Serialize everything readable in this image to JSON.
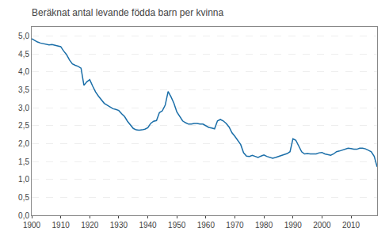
{
  "chart_data": {
    "type": "line",
    "title": "Beräknat antal levande födda barn per kvinna",
    "color": "#1a6ea8",
    "x": [
      1900,
      1901,
      1902,
      1903,
      1904,
      1905,
      1906,
      1907,
      1908,
      1909,
      1910,
      1911,
      1912,
      1913,
      1914,
      1915,
      1916,
      1917,
      1918,
      1919,
      1920,
      1921,
      1922,
      1923,
      1924,
      1925,
      1926,
      1927,
      1928,
      1929,
      1930,
      1931,
      1932,
      1933,
      1934,
      1935,
      1936,
      1937,
      1938,
      1939,
      1940,
      1941,
      1942,
      1943,
      1944,
      1945,
      1946,
      1947,
      1948,
      1949,
      1950,
      1951,
      1952,
      1953,
      1954,
      1955,
      1956,
      1957,
      1958,
      1959,
      1960,
      1961,
      1962,
      1963,
      1964,
      1965,
      1966,
      1967,
      1968,
      1969,
      1970,
      1971,
      1972,
      1973,
      1974,
      1975,
      1976,
      1977,
      1978,
      1979,
      1980,
      1981,
      1982,
      1983,
      1984,
      1985,
      1986,
      1987,
      1988,
      1989,
      1990,
      1991,
      1992,
      1993,
      1994,
      1995,
      1996,
      1997,
      1998,
      1999,
      2000,
      2001,
      2002,
      2003,
      2004,
      2005,
      2006,
      2007,
      2008,
      2009,
      2010,
      2011,
      2012,
      2013,
      2014,
      2015,
      2016,
      2017,
      2018,
      2019
    ],
    "values": [
      4.92,
      4.87,
      4.83,
      4.8,
      4.78,
      4.76,
      4.75,
      4.76,
      4.74,
      4.72,
      4.7,
      4.58,
      4.48,
      4.33,
      4.22,
      4.18,
      4.15,
      4.1,
      3.62,
      3.72,
      3.78,
      3.6,
      3.44,
      3.32,
      3.22,
      3.12,
      3.07,
      3.02,
      2.97,
      2.95,
      2.92,
      2.83,
      2.75,
      2.62,
      2.52,
      2.42,
      2.38,
      2.37,
      2.38,
      2.4,
      2.44,
      2.56,
      2.62,
      2.64,
      2.86,
      2.91,
      3.07,
      3.45,
      3.3,
      3.12,
      2.88,
      2.74,
      2.63,
      2.58,
      2.54,
      2.54,
      2.56,
      2.56,
      2.54,
      2.54,
      2.5,
      2.45,
      2.43,
      2.41,
      2.63,
      2.67,
      2.63,
      2.56,
      2.46,
      2.3,
      2.2,
      2.08,
      1.97,
      1.74,
      1.65,
      1.64,
      1.67,
      1.64,
      1.61,
      1.65,
      1.68,
      1.64,
      1.61,
      1.59,
      1.61,
      1.64,
      1.66,
      1.69,
      1.72,
      1.77,
      2.13,
      2.09,
      1.93,
      1.77,
      1.71,
      1.72,
      1.71,
      1.71,
      1.71,
      1.74,
      1.75,
      1.71,
      1.69,
      1.67,
      1.71,
      1.77,
      1.79,
      1.82,
      1.84,
      1.87,
      1.86,
      1.84,
      1.84,
      1.87,
      1.87,
      1.85,
      1.81,
      1.77,
      1.64,
      1.35
    ],
    "xlim": [
      1900,
      2019
    ],
    "ylim": [
      0.0,
      5.25
    ],
    "xticks": [
      1900,
      1910,
      1920,
      1930,
      1940,
      1950,
      1960,
      1970,
      1980,
      1990,
      2000,
      2010
    ],
    "yticks": [
      {
        "value": 0.0,
        "label": "0,0"
      },
      {
        "value": 0.5,
        "label": "0,5"
      },
      {
        "value": 1.0,
        "label": "1,0"
      },
      {
        "value": 1.5,
        "label": "1,5"
      },
      {
        "value": 2.0,
        "label": "2,0"
      },
      {
        "value": 2.5,
        "label": "2,5"
      },
      {
        "value": 3.0,
        "label": "3,0"
      },
      {
        "value": 3.5,
        "label": "3,5"
      },
      {
        "value": 4.0,
        "label": "4,0"
      },
      {
        "value": 4.5,
        "label": "4,5"
      },
      {
        "value": 5.0,
        "label": "5,0"
      }
    ],
    "grid": true
  }
}
